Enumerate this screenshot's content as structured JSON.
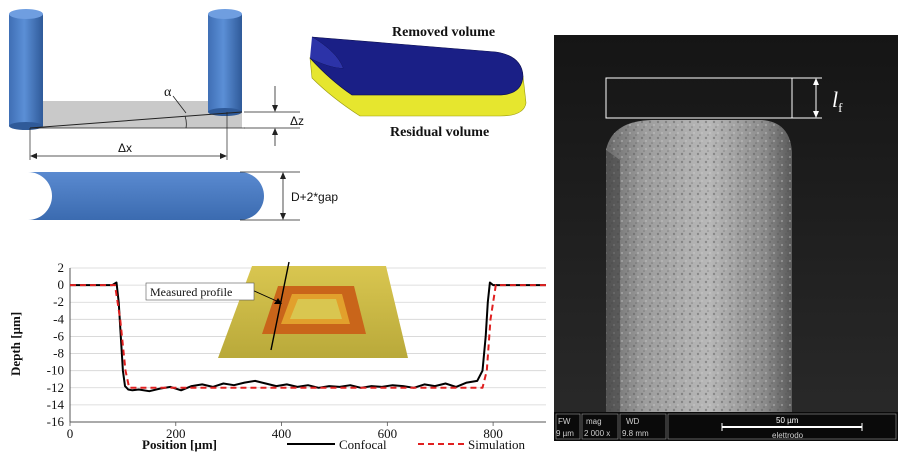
{
  "schematic": {
    "alpha_label": "α",
    "dz_label": "Δz",
    "dx_label": "Δx",
    "gap_label": "D+2*gap",
    "removed_volume_label": "Removed volume",
    "residual_volume_label": "Residual volume"
  },
  "sem": {
    "lf_main": "l",
    "lf_sub": "f",
    "databar": {
      "fw_label": "FW",
      "fw_value": "9 µm",
      "mag_label": "mag",
      "mag_value": "2 000 x",
      "wd_label": "WD",
      "wd_value": "9.8 mm",
      "scale_label": "50 µm",
      "name": "elettrodo"
    }
  },
  "chart_data": {
    "type": "line",
    "xlabel": "Position [µm]",
    "ylabel": "Depth [µm]",
    "xlim": [
      0,
      900
    ],
    "ylim": [
      -16,
      2
    ],
    "xticks": [
      0,
      200,
      400,
      600,
      800
    ],
    "yticks": [
      2,
      0,
      -2,
      -4,
      -6,
      -8,
      -10,
      -12,
      -14,
      -16
    ],
    "grid": "horizontal",
    "legend_position": "bottom",
    "inset_label": "Measured profile",
    "series": [
      {
        "name": "Confocal",
        "color": "#000000",
        "dash": "solid",
        "x": [
          0,
          80,
          88,
          92,
          96,
          100,
          104,
          110,
          118,
          130,
          150,
          170,
          190,
          210,
          230,
          250,
          270,
          290,
          310,
          330,
          350,
          370,
          390,
          410,
          430,
          450,
          470,
          490,
          510,
          530,
          550,
          570,
          590,
          610,
          630,
          650,
          670,
          690,
          710,
          730,
          750,
          770,
          780,
          786,
          790,
          794,
          800,
          820,
          900
        ],
        "y": [
          0,
          0,
          0.3,
          -2,
          -6,
          -10,
          -11.8,
          -12.2,
          -12.3,
          -12.2,
          -12.4,
          -12.1,
          -11.9,
          -12.3,
          -11.8,
          -11.6,
          -11.9,
          -11.5,
          -11.7,
          -11.4,
          -11.2,
          -11.5,
          -11.8,
          -11.6,
          -11.9,
          -11.7,
          -12,
          -11.8,
          -11.9,
          -11.7,
          -12,
          -11.8,
          -11.9,
          -11.7,
          -11.8,
          -12,
          -11.6,
          -11.8,
          -11.5,
          -11.9,
          -11.4,
          -11.2,
          -10,
          -6,
          -2,
          0.3,
          0,
          0,
          0
        ]
      },
      {
        "name": "Simulation",
        "color": "#e02020",
        "dash": "dashed",
        "x": [
          0,
          85,
          95,
          105,
          112,
          120,
          780,
          788,
          795,
          805,
          900
        ],
        "y": [
          0,
          0,
          -4,
          -10,
          -12,
          -12,
          -12,
          -10,
          -4,
          0,
          0
        ]
      }
    ]
  }
}
